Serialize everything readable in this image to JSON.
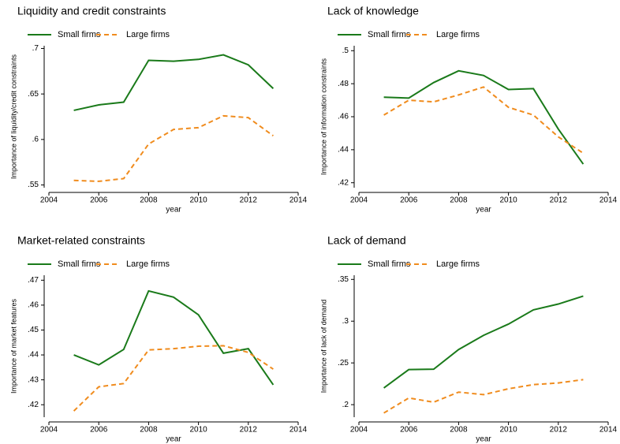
{
  "chart_data": [
    {
      "type": "line",
      "title": "Liquidity and credit constraints",
      "xlabel": "year",
      "ylabel": "Importance of liquidity/credit constraints",
      "x": [
        2005,
        2006,
        2007,
        2008,
        2009,
        2010,
        2011,
        2012,
        2013
      ],
      "series": [
        {
          "name": "Small firms",
          "color": "#1a7a1a",
          "values": [
            0.632,
            0.638,
            0.641,
            0.687,
            0.686,
            0.688,
            0.693,
            0.682,
            0.656
          ]
        },
        {
          "name": "Large firms",
          "color": "#f08c1e",
          "values": [
            0.555,
            0.554,
            0.557,
            0.595,
            0.611,
            0.613,
            0.626,
            0.624,
            0.604
          ]
        }
      ],
      "xlim": [
        2004,
        2014
      ],
      "xticks": [
        2004,
        2006,
        2008,
        2010,
        2012,
        2014
      ],
      "ylim": [
        0.547,
        0.703
      ],
      "yticks": [
        {
          "value": 0.55,
          "label": ".55"
        },
        {
          "value": 0.6,
          "label": ".6"
        },
        {
          "value": 0.65,
          "label": ".65"
        },
        {
          "value": 0.7,
          "label": ".7"
        }
      ]
    },
    {
      "type": "line",
      "title": "Lack of knowledge",
      "xlabel": "year",
      "ylabel": "Importance of information constraints",
      "x": [
        2005,
        2006,
        2007,
        2008,
        2009,
        2010,
        2011,
        2012,
        2013
      ],
      "series": [
        {
          "name": "Small firms",
          "color": "#1a7a1a",
          "values": [
            0.4718,
            0.4713,
            0.4807,
            0.4878,
            0.485,
            0.4765,
            0.477,
            0.4525,
            0.4313
          ]
        },
        {
          "name": "Large firms",
          "color": "#f08c1e",
          "values": [
            0.461,
            0.47,
            0.469,
            0.4732,
            0.478,
            0.4657,
            0.461,
            0.4478,
            0.4379
          ]
        }
      ],
      "xlim": [
        2004,
        2014
      ],
      "xticks": [
        2004,
        2006,
        2008,
        2010,
        2012,
        2014
      ],
      "ylim": [
        0.417,
        0.503
      ],
      "yticks": [
        {
          "value": 0.42,
          "label": ".42"
        },
        {
          "value": 0.44,
          "label": ".44"
        },
        {
          "value": 0.46,
          "label": ".46"
        },
        {
          "value": 0.48,
          "label": ".48"
        },
        {
          "value": 0.5,
          "label": ".5"
        }
      ]
    },
    {
      "type": "line",
      "title": "Market-related constraints",
      "xlabel": "year",
      "ylabel": "Importance of market features",
      "x": [
        2005,
        2006,
        2007,
        2008,
        2009,
        2010,
        2011,
        2012,
        2013
      ],
      "series": [
        {
          "name": "Small firms",
          "color": "#1a7a1a",
          "values": [
            0.44,
            0.436,
            0.4422,
            0.4657,
            0.4632,
            0.4561,
            0.4407,
            0.4425,
            0.428
          ]
        },
        {
          "name": "Large firms",
          "color": "#f08c1e",
          "values": [
            0.4175,
            0.4272,
            0.4285,
            0.442,
            0.4425,
            0.4435,
            0.4437,
            0.441,
            0.4343
          ]
        }
      ],
      "xlim": [
        2004,
        2014
      ],
      "xticks": [
        2004,
        2006,
        2008,
        2010,
        2012,
        2014
      ],
      "ylim": [
        0.415,
        0.472
      ],
      "yticks": [
        {
          "value": 0.42,
          "label": ".42"
        },
        {
          "value": 0.43,
          "label": ".43"
        },
        {
          "value": 0.44,
          "label": ".44"
        },
        {
          "value": 0.45,
          "label": ".45"
        },
        {
          "value": 0.46,
          "label": ".46"
        },
        {
          "value": 0.47,
          "label": ".47"
        }
      ]
    },
    {
      "type": "line",
      "title": "Lack of demand",
      "xlabel": "year",
      "ylabel": "Importance of lack of demand",
      "x": [
        2005,
        2006,
        2007,
        2008,
        2009,
        2010,
        2011,
        2012,
        2013
      ],
      "series": [
        {
          "name": "Small firms",
          "color": "#1a7a1a",
          "values": [
            0.22,
            0.242,
            0.2425,
            0.266,
            0.283,
            0.2965,
            0.3135,
            0.3205,
            0.33
          ]
        },
        {
          "name": "Large firms",
          "color": "#f08c1e",
          "values": [
            0.19,
            0.208,
            0.203,
            0.215,
            0.212,
            0.219,
            0.224,
            0.226,
            0.23
          ]
        }
      ],
      "xlim": [
        2004,
        2014
      ],
      "xticks": [
        2004,
        2006,
        2008,
        2010,
        2012,
        2014
      ],
      "ylim": [
        0.185,
        0.355
      ],
      "yticks": [
        {
          "value": 0.2,
          "label": ".2"
        },
        {
          "value": 0.25,
          "label": ".25"
        },
        {
          "value": 0.3,
          "label": ".3"
        },
        {
          "value": 0.35,
          "label": ".35"
        }
      ]
    }
  ]
}
